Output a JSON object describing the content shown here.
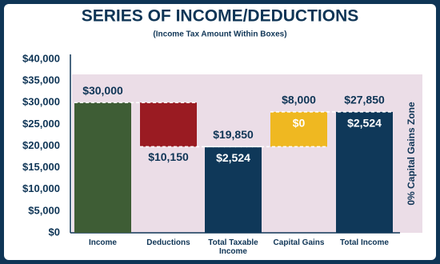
{
  "chart_data": {
    "type": "waterfall",
    "title": "SERIES OF INCOME/DEDUCTIONS",
    "subtitle": "(Income Tax Amount Within Boxes)",
    "categories": [
      "Income",
      "Deductions",
      "Total Taxable Income",
      "Capital Gains",
      "Total Income"
    ],
    "kinds": [
      "total",
      "decrease",
      "total",
      "increase",
      "total"
    ],
    "values": [
      30000,
      10150,
      19850,
      8000,
      27850
    ],
    "value_labels": [
      "$30,000",
      "$10,150",
      "$19,850",
      "$8,000",
      "$27,850"
    ],
    "colors": [
      "#3e5d35",
      "#9a1b22",
      "#0f3859",
      "#efb821",
      "#0f3859"
    ],
    "tax": {
      "values": [
        null,
        null,
        2524,
        0,
        2524
      ],
      "value_labels": [
        null,
        null,
        "$2,524",
        "$0",
        "$2,524"
      ]
    },
    "zone": {
      "label": "0% Capital Gains Zone",
      "ylim": [
        0,
        36500
      ],
      "color": "#ebdde7"
    },
    "ylim": [
      0,
      40000
    ],
    "yticks": [
      {
        "value": 0,
        "label": "$0"
      },
      {
        "value": 5000,
        "label": "$5,000"
      },
      {
        "value": 10000,
        "label": "$10,000"
      },
      {
        "value": 15000,
        "label": "$15,000"
      },
      {
        "value": 20000,
        "label": "$20,000"
      },
      {
        "value": 25000,
        "label": "$25,000"
      },
      {
        "value": 30000,
        "label": "$30,000"
      },
      {
        "value": 35000,
        "label": "$35,000"
      },
      {
        "value": 40000,
        "label": "$40,000"
      }
    ]
  }
}
